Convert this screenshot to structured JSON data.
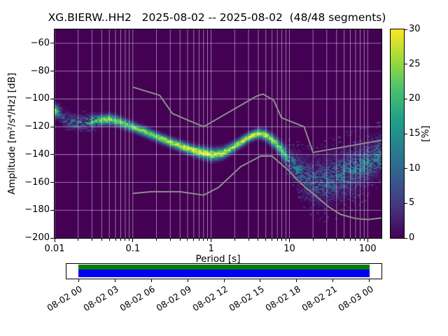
{
  "chart_data": {
    "type": "heatmap",
    "title": "XG.BIERW..HH2   2025-08-02 -- 2025-08-02  (48/48 segments)",
    "xlabel": "Period [s]",
    "ylabel": "Amplitude [m²/s⁴/Hz] [dB]",
    "xscale": "log",
    "xlim": [
      0.01,
      150
    ],
    "ylim": [
      -200,
      -50
    ],
    "grid": true,
    "background_color": "#440154",
    "grid_color": "#ffffff",
    "x_ticks": {
      "values": [
        0.01,
        0.1,
        1,
        10,
        100
      ],
      "labels": [
        "0.01",
        "0.1",
        "1",
        "10",
        "100"
      ]
    },
    "y_ticks": {
      "values": [
        -60,
        -80,
        -100,
        -120,
        -140,
        -160,
        -180,
        -200
      ],
      "labels": [
        "−60",
        "−80",
        "−100",
        "−120",
        "−140",
        "−160",
        "−180",
        "−200"
      ]
    },
    "colorbar": {
      "label": "[%]",
      "min": 0,
      "max": 30,
      "tick_values": [
        0,
        5,
        10,
        15,
        20,
        25,
        30
      ],
      "tick_labels": [
        "0",
        "5",
        "10",
        "15",
        "20",
        "25",
        "30"
      ],
      "viridis_stops": [
        "#440154",
        "#46327e",
        "#365c8d",
        "#277f8e",
        "#1fa187",
        "#4ac16d",
        "#a0da39",
        "#fde725"
      ]
    },
    "ppsd_distribution": {
      "periods_s": [
        0.01,
        0.012,
        0.013,
        0.016,
        0.02,
        0.03,
        0.04,
        0.05,
        0.065,
        0.08,
        0.1,
        0.15,
        0.2,
        0.3,
        0.5,
        0.7,
        1.0,
        1.4,
        2.0,
        3.0,
        4.0,
        5.0,
        6.5,
        8.0,
        10,
        13,
        17,
        22,
        30,
        45,
        70,
        100,
        150
      ],
      "mode_db": [
        -108,
        -110,
        -114,
        -116,
        -117,
        -116,
        -115,
        -114.5,
        -116,
        -118,
        -120,
        -124,
        -127,
        -131,
        -135.5,
        -138,
        -140,
        -139,
        -134,
        -127.5,
        -124.5,
        -126,
        -131,
        -137,
        -144,
        -151,
        -157,
        -160,
        -159,
        -155,
        -150,
        -145,
        -140
      ],
      "sigma_db": [
        2.5,
        3,
        3,
        2.8,
        2.6,
        2.4,
        2.2,
        2.2,
        2.2,
        2.2,
        2.0,
        2.0,
        2.0,
        2.0,
        2.2,
        2.4,
        2.6,
        2.4,
        2.2,
        2.0,
        2.0,
        2.2,
        2.6,
        3.2,
        4.5,
        6,
        7.5,
        8.5,
        9,
        9,
        8.5,
        8,
        7
      ],
      "peak_probability_pct": [
        27,
        10,
        9,
        12,
        15,
        22,
        24,
        26,
        24,
        22,
        24,
        26,
        26,
        27,
        28,
        29,
        29,
        27,
        26,
        29,
        30,
        28,
        26,
        22,
        16,
        12,
        10,
        10,
        10,
        11,
        12,
        13,
        14
      ]
    },
    "noise_models": {
      "color": "#8c8c8c",
      "nhnm_period_db": [
        [
          0.1,
          -91.5
        ],
        [
          0.22,
          -97.4
        ],
        [
          0.32,
          -110.5
        ],
        [
          0.8,
          -120.0
        ],
        [
          3.8,
          -98.0
        ],
        [
          4.6,
          -96.5
        ],
        [
          6.3,
          -101.0
        ],
        [
          7.9,
          -113.5
        ],
        [
          15.4,
          -120.0
        ],
        [
          20.0,
          -138.5
        ],
        [
          354.8,
          -126.0
        ]
      ],
      "nlnm_period_db": [
        [
          0.1,
          -168.0
        ],
        [
          0.17,
          -166.7
        ],
        [
          0.4,
          -166.7
        ],
        [
          0.8,
          -169.2
        ],
        [
          1.24,
          -163.7
        ],
        [
          2.4,
          -148.6
        ],
        [
          4.3,
          -141.1
        ],
        [
          6.0,
          -141.1
        ],
        [
          10.0,
          -152.0
        ],
        [
          12.5,
          -158.0
        ],
        [
          15.6,
          -163.0
        ],
        [
          21.9,
          -170.0
        ],
        [
          31.6,
          -177.5
        ],
        [
          45.0,
          -183.0
        ],
        [
          70.0,
          -186.0
        ],
        [
          101.0,
          -186.7
        ],
        [
          154.0,
          -185.5
        ],
        [
          328.0,
          -182.5
        ]
      ]
    },
    "timeline": {
      "tick_hours": [
        0,
        3,
        6,
        9,
        12,
        15,
        18,
        21,
        24
      ],
      "tick_labels": [
        "08-02 00",
        "08-02 03",
        "08-02 06",
        "08-02 09",
        "08-02 12",
        "08-02 15",
        "08-02 18",
        "08-02 21",
        "08-03 00"
      ],
      "axis_range_hours": [
        -1,
        25
      ],
      "coverage_hours": [
        0,
        24
      ],
      "colors": {
        "segments": "#008000",
        "coverage": "#0000ee"
      }
    }
  }
}
